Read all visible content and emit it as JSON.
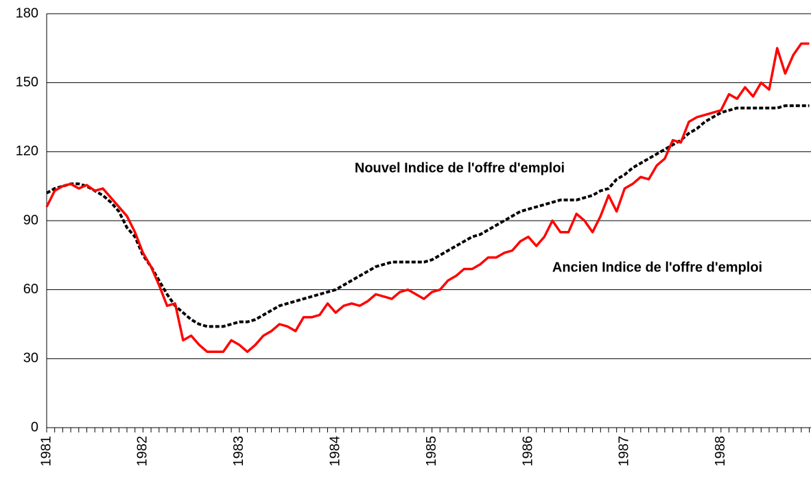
{
  "chart_data": {
    "type": "line",
    "categories": [
      "1981",
      null,
      null,
      null,
      null,
      null,
      null,
      null,
      null,
      null,
      null,
      null,
      "1982",
      null,
      null,
      null,
      null,
      null,
      null,
      null,
      null,
      null,
      null,
      null,
      "1983",
      null,
      null,
      null,
      null,
      null,
      null,
      null,
      null,
      null,
      null,
      null,
      "1984",
      null,
      null,
      null,
      null,
      null,
      null,
      null,
      null,
      null,
      null,
      null,
      "1985",
      null,
      null,
      null,
      null,
      null,
      null,
      null,
      null,
      null,
      null,
      null,
      "1986",
      null,
      null,
      null,
      null,
      null,
      null,
      null,
      null,
      null,
      null,
      null,
      "1987",
      null,
      null,
      null,
      null,
      null,
      null,
      null,
      null,
      null,
      null,
      null,
      "1988",
      null,
      null,
      null,
      null,
      null,
      null,
      null,
      null,
      null,
      null,
      null
    ],
    "series": [
      {
        "name": "Ancien Indice de l'offre d'emploi",
        "color": "#ff0000",
        "dashed": false,
        "values": [
          96,
          103,
          105,
          106,
          104,
          105.5,
          103,
          104,
          100,
          96,
          92,
          85,
          76,
          70,
          62,
          53,
          54,
          38,
          40,
          36,
          33,
          33,
          33,
          38,
          36,
          33,
          36,
          40,
          42,
          45,
          44,
          42,
          48,
          48,
          49,
          54,
          50,
          53,
          54,
          53,
          55,
          58,
          57,
          56,
          59,
          60,
          58,
          56,
          59,
          60,
          64,
          66,
          69,
          69,
          71,
          74,
          74,
          76,
          77,
          81,
          83,
          79,
          83,
          90,
          85,
          85,
          93,
          90,
          85,
          92,
          101,
          94,
          104,
          106,
          109,
          108,
          114,
          117,
          125,
          124,
          133,
          135,
          136,
          137,
          138,
          145,
          143,
          148,
          144,
          150,
          147,
          165,
          154,
          162,
          167,
          167
        ]
      },
      {
        "name": "Nouvel Indice de l'offre d'emploi",
        "color": "#000000",
        "dashed": true,
        "values": [
          102,
          104,
          105,
          106,
          106,
          105,
          103,
          101,
          98,
          94,
          87,
          83,
          75,
          70,
          64,
          58,
          53,
          50,
          47,
          45,
          44,
          44,
          44,
          45,
          46,
          46,
          47,
          49,
          51,
          53,
          54,
          55,
          56,
          57,
          58,
          59,
          60,
          62,
          64,
          66,
          68,
          70,
          71,
          72,
          72,
          72,
          72,
          72,
          73,
          75,
          77,
          79,
          81,
          83,
          84,
          86,
          88,
          90,
          92,
          94,
          95,
          96,
          97,
          98,
          99,
          99,
          99,
          100,
          101,
          103,
          104,
          108,
          110,
          113,
          115,
          117,
          119,
          121,
          123,
          125,
          128,
          130,
          133,
          135,
          137,
          138,
          139,
          139,
          139,
          139,
          139,
          139,
          140,
          140,
          140,
          140
        ]
      }
    ],
    "annotations": [
      "Nouvel Indice de l'offre d'emploi",
      "Ancien Indice de l'offre d'emploi"
    ],
    "ylim": [
      0,
      180
    ],
    "yticks": [
      0,
      30,
      60,
      90,
      120,
      150,
      180
    ],
    "grid": true
  }
}
